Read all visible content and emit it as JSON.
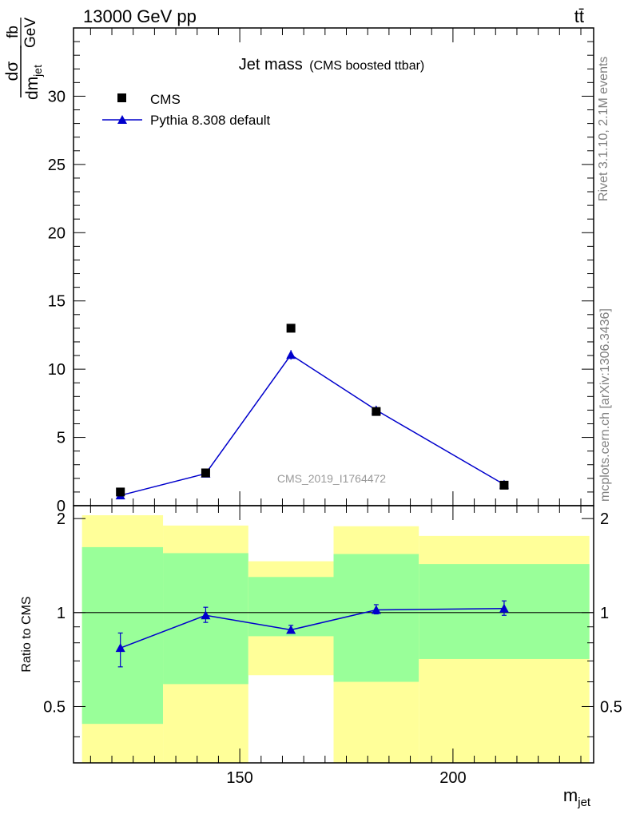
{
  "header": {
    "energy_label": "13000 GeV pp",
    "process_label": "tt̄"
  },
  "side_labels": {
    "rivet": "Rivet 3.1.10,  2.1M events",
    "site": "mcplots.cern.ch [arXiv:1306.3436]"
  },
  "colors": {
    "data": "#000000",
    "mc": "#0000cc",
    "band_inner": "#99ff99",
    "band_outer": "#ffff99",
    "watermark": "#999999"
  },
  "chart_data": [
    {
      "type": "scatter",
      "title": "Jet mass",
      "subtitle": "(CMS boosted ttbar)",
      "watermark": "CMS_2019_I1764472",
      "ylabel": {
        "numerator": "dσ",
        "denominator": "dm",
        "denominator_sub": "jet",
        "unit_numerator": "fb",
        "unit_denominator": "GeV"
      },
      "xlim": [
        111,
        233
      ],
      "ylim": [
        0,
        35
      ],
      "yticks": [
        0,
        5,
        10,
        15,
        20,
        25,
        30
      ],
      "ytick_labels": [
        "0",
        "5",
        "10",
        "15",
        "20",
        "25",
        "30"
      ],
      "legend": {
        "placement": "top-left"
      },
      "series": [
        {
          "name": "CMS",
          "marker": "square",
          "points": [
            {
              "x": 122,
              "y": 1.0
            },
            {
              "x": 142,
              "y": 2.4
            },
            {
              "x": 162,
              "y": 13.0
            },
            {
              "x": 182,
              "y": 6.9
            },
            {
              "x": 212,
              "y": 1.5
            }
          ]
        },
        {
          "name": "Pythia 8.308 default",
          "marker": "triangle",
          "line": true,
          "points": [
            {
              "x": 122,
              "y": 0.75,
              "err": 0.06
            },
            {
              "x": 142,
              "y": 2.35,
              "err": 0.12
            },
            {
              "x": 162,
              "y": 11.05,
              "err": 0.35
            },
            {
              "x": 182,
              "y": 7.0,
              "err": 0.3
            },
            {
              "x": 212,
              "y": 1.55,
              "err": 0.08
            }
          ]
        }
      ]
    },
    {
      "type": "scatter",
      "ylabel": "Ratio to CMS",
      "xlabel": "m",
      "xlabel_sub": "jet",
      "xlim": [
        111,
        233
      ],
      "ylim": [
        0.33,
        2.2
      ],
      "yticks": [
        0.5,
        1,
        2
      ],
      "ytick_labels": [
        "0.5",
        "1",
        "2"
      ],
      "xticks": [
        150,
        200
      ],
      "xtick_labels": [
        "150",
        "200"
      ],
      "bands": [
        {
          "x0": 113,
          "x1": 132,
          "inner": [
            0.44,
            1.62
          ],
          "outer": [
            0.33,
            2.05
          ]
        },
        {
          "x0": 132,
          "x1": 152,
          "inner": [
            0.59,
            1.55
          ],
          "outer": [
            0.33,
            1.9
          ]
        },
        {
          "x0": 152,
          "x1": 172,
          "inner": [
            0.84,
            1.3
          ],
          "outer": [
            0.63,
            1.46
          ]
        },
        {
          "x0": 172,
          "x1": 192,
          "inner": [
            0.6,
            1.54
          ],
          "outer": [
            0.33,
            1.89
          ]
        },
        {
          "x0": 192,
          "x1": 232,
          "inner": [
            0.71,
            1.43
          ],
          "outer": [
            0.33,
            1.76
          ]
        }
      ],
      "series": [
        {
          "name": "Pythia 8.308 default",
          "marker": "triangle",
          "line": true,
          "points": [
            {
              "x": 122,
              "y": 0.77,
              "lo": 0.67,
              "hi": 0.86
            },
            {
              "x": 142,
              "y": 0.98,
              "lo": 0.93,
              "hi": 1.04
            },
            {
              "x": 162,
              "y": 0.88,
              "lo": 0.86,
              "hi": 0.91
            },
            {
              "x": 182,
              "y": 1.02,
              "lo": 0.99,
              "hi": 1.06
            },
            {
              "x": 212,
              "y": 1.03,
              "lo": 0.98,
              "hi": 1.09
            }
          ]
        }
      ]
    }
  ]
}
